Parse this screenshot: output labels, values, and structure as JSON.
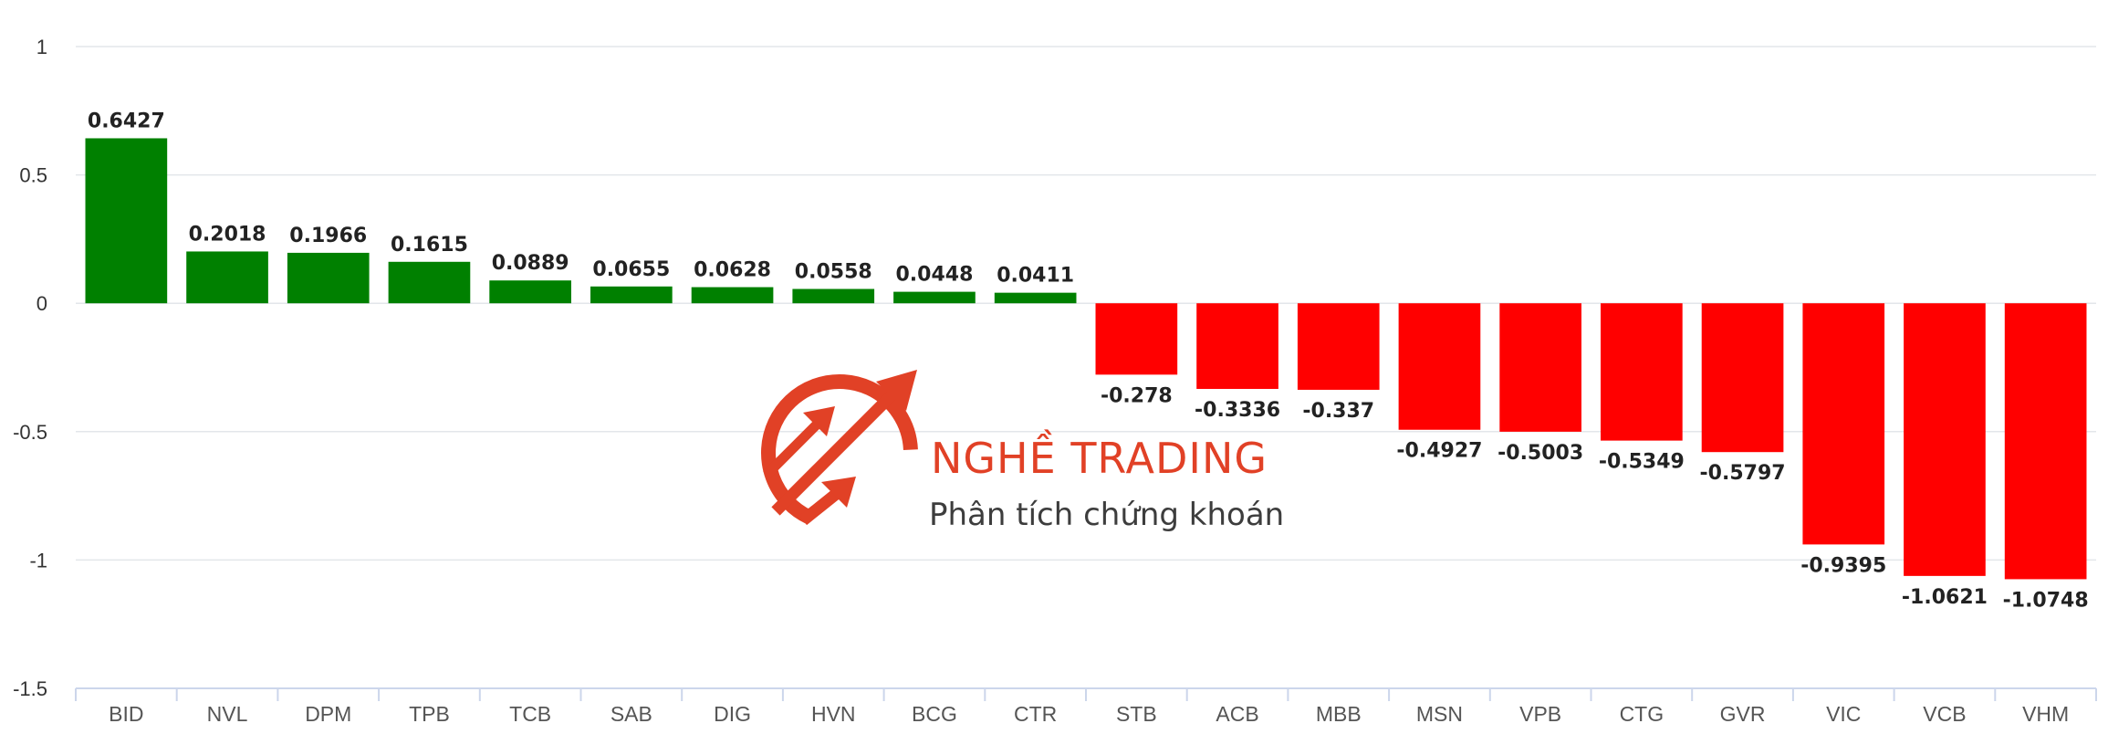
{
  "chart_data": {
    "type": "bar",
    "categories": [
      "BID",
      "NVL",
      "DPM",
      "TPB",
      "TCB",
      "SAB",
      "DIG",
      "HVN",
      "BCG",
      "CTR",
      "STB",
      "ACB",
      "MBB",
      "MSN",
      "VPB",
      "CTG",
      "GVR",
      "VIC",
      "VCB",
      "VHM"
    ],
    "values": [
      0.6427,
      0.2018,
      0.1966,
      0.1615,
      0.0889,
      0.0655,
      0.0628,
      0.0558,
      0.0448,
      0.0411,
      -0.278,
      -0.3336,
      -0.337,
      -0.4927,
      -0.5003,
      -0.5349,
      -0.5797,
      -0.9395,
      -1.0621,
      -1.0748
    ],
    "value_labels": [
      "0.6427",
      "0.2018",
      "0.1966",
      "0.1615",
      "0.0889",
      "0.0655",
      "0.0628",
      "0.0558",
      "0.0448",
      "0.0411",
      "-0.278",
      "-0.3336",
      "-0.337",
      "-0.4927",
      "-0.5003",
      "-0.5349",
      "-0.5797",
      "-0.9395",
      "-1.0621",
      "-1.0748"
    ],
    "yticks": [
      1,
      0.5,
      0,
      -0.5,
      -1,
      -1.5
    ],
    "ytick_labels": [
      "1",
      "0.5",
      "0",
      "-0.5",
      "-1",
      "-1.5"
    ],
    "ylim": [
      -1.5,
      1
    ],
    "grid": true,
    "colors": {
      "positive": "#008000",
      "negative": "#ff0000"
    },
    "title": "",
    "xlabel": "",
    "ylabel": ""
  },
  "watermark": {
    "brand": "NGHỀ TRADING",
    "tagline": "Phân tích chứng khoán",
    "color": "#e0371b"
  }
}
